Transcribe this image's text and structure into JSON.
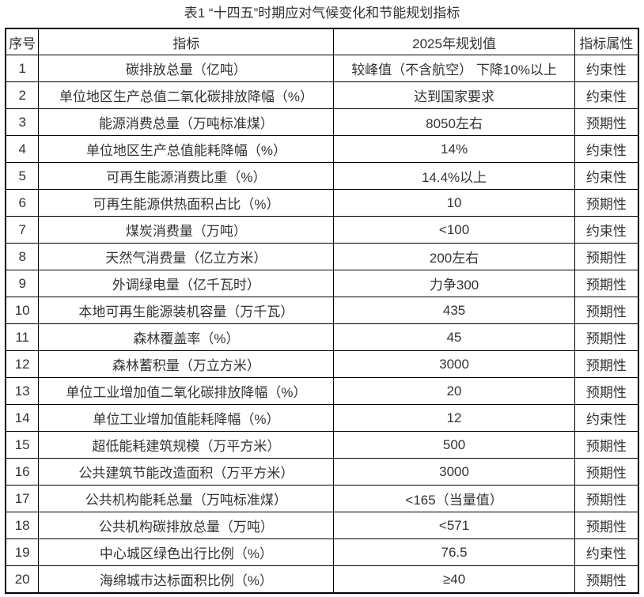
{
  "title": "表1 “十四五”时期应对气候变化和节能规划指标",
  "headers": [
    "序号",
    "指标",
    "2025年规划值",
    "指标属性"
  ],
  "rows": [
    [
      "1",
      "碳排放总量（亿吨）",
      "较峰值（不含航空） 下降10%以上",
      "约束性"
    ],
    [
      "2",
      "单位地区生产总值二氧化碳排放降幅（%）",
      "达到国家要求",
      "约束性"
    ],
    [
      "3",
      "能源消费总量（万吨标准煤）",
      "8050左右",
      "预期性"
    ],
    [
      "4",
      "单位地区生产总值能耗降幅（%）",
      "14%",
      "约束性"
    ],
    [
      "5",
      "可再生能源消费比重（%）",
      "14.4%以上",
      "约束性"
    ],
    [
      "6",
      "可再生能源供热面积占比（%）",
      "10",
      "预期性"
    ],
    [
      "7",
      "煤炭消费量（万吨）",
      "<100",
      "约束性"
    ],
    [
      "8",
      "天然气消费量（亿立方米）",
      "200左右",
      "预期性"
    ],
    [
      "9",
      "外调绿电量（亿千瓦时）",
      "力争300",
      "预期性"
    ],
    [
      "10",
      "本地可再生能源装机容量（万千瓦）",
      "435",
      "预期性"
    ],
    [
      "11",
      "森林覆盖率（%）",
      "45",
      "预期性"
    ],
    [
      "12",
      "森林蓄积量（万立方米）",
      "3000",
      "预期性"
    ],
    [
      "13",
      "单位工业增加值二氧化碳排放降幅（%）",
      "20",
      "预期性"
    ],
    [
      "14",
      "单位工业增加值能耗降幅（%）",
      "12",
      "约束性"
    ],
    [
      "15",
      "超低能耗建筑规模（万平方米）",
      "500",
      "预期性"
    ],
    [
      "16",
      "公共建筑节能改造面积（万平方米）",
      "3000",
      "预期性"
    ],
    [
      "17",
      "公共机构能耗总量（万吨标准煤）",
      "<165（当量值）",
      "预期性"
    ],
    [
      "18",
      "公共机构碳排放总量（万吨）",
      "<571",
      "预期性"
    ],
    [
      "19",
      "中心城区绿色出行比例（%）",
      "76.5",
      "约束性"
    ],
    [
      "20",
      "海绵城市达标面积比例（%）",
      "≥40",
      "预期性"
    ]
  ]
}
